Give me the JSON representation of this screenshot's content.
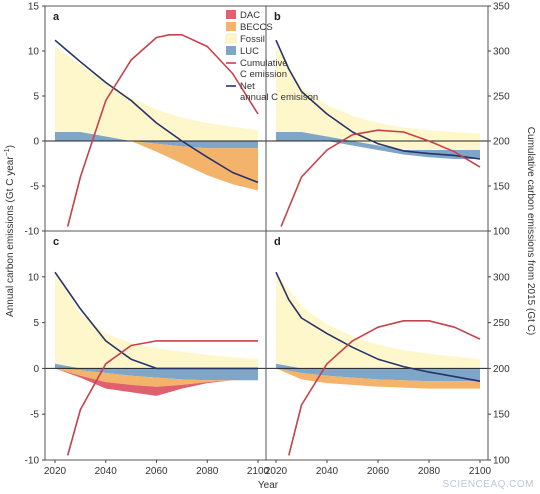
{
  "figure": {
    "ylabel_left": "Annual carbon emissions (Gt C year",
    "ylabel_left_sup": "−1",
    "ylabel_left_end": ")",
    "ylabel_right": "Cumulative carbon emissions from 2015 (Gt C)",
    "xlabel": "Year",
    "x_ticks": [
      2020,
      2040,
      2060,
      2080,
      2100
    ],
    "y_left_ticks": [
      -10,
      -5,
      0,
      5,
      10,
      15
    ],
    "y_right_ticks": [
      100,
      150,
      200,
      250,
      300,
      350
    ],
    "colors": {
      "dac": "#e06070",
      "beccs": "#f4b36a",
      "fossil": "#fff7cc",
      "luc": "#7fa6c6",
      "cumulative": "#c8404a",
      "net": "#27336b",
      "frame": "#555555"
    }
  },
  "legend": {
    "items": [
      {
        "key": "dac",
        "label": "DAC"
      },
      {
        "key": "beccs",
        "label": "BECCS"
      },
      {
        "key": "fossil",
        "label": "Fossil"
      },
      {
        "key": "luc",
        "label": "LUC"
      },
      {
        "key": "cumulative",
        "label": "Cumulative C emission"
      },
      {
        "key": "net",
        "label": "Net annual C emisison"
      }
    ]
  },
  "chart_data": [
    {
      "type": "area",
      "panel": "a",
      "x": [
        2020,
        2030,
        2040,
        2050,
        2060,
        2070,
        2080,
        2090,
        2100
      ],
      "series": [
        {
          "name": "Fossil",
          "upper": [
            10.5,
            8.5,
            6.5,
            4.8,
            3.5,
            2.6,
            2.0,
            1.6,
            1.2
          ],
          "lower": [
            1.0,
            1.0,
            0.5,
            0.0,
            0.0,
            0.0,
            0.0,
            0.0,
            0.0
          ]
        },
        {
          "name": "LUC",
          "upper": [
            1.0,
            1.0,
            0.5,
            0.0,
            0.0,
            0.0,
            0.0,
            0.0,
            0.0
          ],
          "lower": [
            0,
            0,
            0,
            0,
            -0.3,
            -0.6,
            -0.8,
            -0.8,
            -0.8
          ]
        },
        {
          "name": "BECCS",
          "upper": [
            0,
            0,
            0,
            0,
            -0.3,
            -0.6,
            -0.8,
            -0.8,
            -0.8
          ],
          "lower": [
            0,
            0,
            0,
            0,
            -1.2,
            -2.5,
            -3.8,
            -4.8,
            -5.5
          ]
        },
        {
          "name": "DAC",
          "upper": [
            0,
            0,
            0,
            0,
            0,
            0,
            0,
            0,
            0
          ],
          "lower": [
            0,
            0,
            0,
            0,
            0,
            0,
            0,
            0,
            0
          ]
        }
      ],
      "net": {
        "x": [
          2020,
          2025,
          2030,
          2040,
          2050,
          2060,
          2070,
          2080,
          2090,
          2100
        ],
        "y": [
          11.2,
          10.0,
          8.8,
          6.5,
          4.5,
          2.0,
          0.0,
          -1.8,
          -3.5,
          -4.6
        ]
      },
      "cumulative": {
        "x": [
          2025,
          2030,
          2040,
          2050,
          2060,
          2065,
          2070,
          2080,
          2090,
          2100
        ],
        "y": [
          105,
          160,
          245,
          290,
          315,
          318,
          318,
          305,
          275,
          230
        ]
      }
    },
    {
      "type": "area",
      "panel": "b",
      "x": [
        2020,
        2030,
        2040,
        2050,
        2060,
        2070,
        2080,
        2090,
        2100
      ],
      "series": [
        {
          "name": "Fossil",
          "upper": [
            10.5,
            6.0,
            4.0,
            2.8,
            2.0,
            1.5,
            1.2,
            1.0,
            0.8
          ],
          "lower": [
            1.0,
            1.0,
            0.5,
            0.0,
            -0.5,
            -1.0,
            -1.0,
            -1.0,
            -1.0
          ]
        },
        {
          "name": "LUC",
          "upper": [
            1.0,
            1.0,
            0.5,
            0.0,
            -0.5,
            -1.0,
            -1.0,
            -1.0,
            -1.0
          ],
          "lower": [
            0,
            0,
            0,
            -0.5,
            -1.0,
            -1.5,
            -1.8,
            -2.0,
            -2.0
          ]
        },
        {
          "name": "BECCS",
          "upper": [
            0,
            0,
            0,
            0,
            0,
            0,
            0,
            0,
            0
          ],
          "lower": [
            0,
            0,
            0,
            0,
            0,
            0,
            0,
            0,
            0
          ]
        },
        {
          "name": "DAC",
          "upper": [
            0,
            0,
            0,
            0,
            0,
            0,
            0,
            0,
            0
          ],
          "lower": [
            0,
            0,
            0,
            0,
            0,
            0,
            0,
            0,
            0
          ]
        }
      ],
      "net": {
        "x": [
          2020,
          2025,
          2030,
          2040,
          2050,
          2060,
          2070,
          2080,
          2090,
          2100
        ],
        "y": [
          11.2,
          8.0,
          5.5,
          3.0,
          1.0,
          -0.3,
          -1.1,
          -1.4,
          -1.6,
          -2.0
        ]
      },
      "cumulative": {
        "x": [
          2022,
          2030,
          2040,
          2050,
          2060,
          2070,
          2080,
          2090,
          2100
        ],
        "y": [
          105,
          160,
          190,
          207,
          212,
          210,
          200,
          188,
          171
        ]
      }
    },
    {
      "type": "area",
      "panel": "c",
      "x": [
        2020,
        2030,
        2040,
        2050,
        2060,
        2070,
        2080,
        2090,
        2100
      ],
      "series": [
        {
          "name": "Fossil",
          "upper": [
            10.5,
            6.0,
            3.8,
            2.8,
            2.2,
            1.8,
            1.5,
            1.2,
            1.0
          ],
          "lower": [
            0.5,
            0.0,
            0.0,
            0.0,
            0.0,
            0.0,
            0.0,
            0.0,
            0.0
          ]
        },
        {
          "name": "LUC",
          "upper": [
            0.5,
            0.0,
            0.0,
            0.0,
            0.0,
            0.0,
            0.0,
            0.0,
            0.0
          ],
          "lower": [
            0,
            -0.2,
            -0.5,
            -0.8,
            -1.0,
            -1.2,
            -1.3,
            -1.3,
            -1.3
          ]
        },
        {
          "name": "BECCS",
          "upper": [
            0,
            -0.2,
            -0.5,
            -0.8,
            -1.0,
            -1.2,
            -1.3,
            -1.3,
            -1.3
          ],
          "lower": [
            0,
            -0.8,
            -1.5,
            -1.8,
            -2.0,
            -1.8,
            -1.5,
            -1.3,
            -1.3
          ]
        },
        {
          "name": "DAC",
          "upper": [
            0,
            -0.8,
            -1.5,
            -1.8,
            -2.0,
            -1.8,
            -1.5,
            -1.3,
            -1.3
          ],
          "lower": [
            0,
            -1.0,
            -2.2,
            -2.6,
            -3.0,
            -2.2,
            -1.6,
            -1.3,
            -1.3
          ]
        }
      ],
      "net": {
        "x": [
          2020,
          2025,
          2030,
          2040,
          2050,
          2060,
          2070,
          2080,
          2090,
          2100
        ],
        "y": [
          10.5,
          8.5,
          6.5,
          3.0,
          1.0,
          0.0,
          0.0,
          0.0,
          0.0,
          0.0
        ]
      },
      "cumulative": {
        "x": [
          2025,
          2030,
          2040,
          2050,
          2060,
          2070,
          2080,
          2090,
          2100
        ],
        "y": [
          105,
          155,
          205,
          225,
          230,
          230,
          230,
          230,
          230
        ]
      }
    },
    {
      "type": "area",
      "panel": "d",
      "x": [
        2020,
        2030,
        2040,
        2050,
        2060,
        2070,
        2080,
        2090,
        2100
      ],
      "series": [
        {
          "name": "Fossil",
          "upper": [
            10.5,
            6.8,
            4.8,
            3.5,
            2.6,
            2.0,
            1.6,
            1.3,
            1.0
          ],
          "lower": [
            0.5,
            0.0,
            0.0,
            0.0,
            0.0,
            0.0,
            0.0,
            0.0,
            0.0
          ]
        },
        {
          "name": "LUC",
          "upper": [
            0.5,
            0.0,
            0.0,
            0.0,
            0.0,
            0.0,
            0.0,
            0.0,
            0.0
          ],
          "lower": [
            0,
            -0.5,
            -0.8,
            -1.0,
            -1.2,
            -1.3,
            -1.4,
            -1.4,
            -1.4
          ]
        },
        {
          "name": "BECCS",
          "upper": [
            0,
            -0.5,
            -0.8,
            -1.0,
            -1.2,
            -1.3,
            -1.4,
            -1.4,
            -1.4
          ],
          "lower": [
            0,
            -1.2,
            -1.6,
            -1.8,
            -2.0,
            -2.1,
            -2.2,
            -2.2,
            -2.2
          ]
        },
        {
          "name": "DAC",
          "upper": [
            0,
            0,
            0,
            0,
            0,
            0,
            0,
            0,
            0
          ],
          "lower": [
            0,
            0,
            0,
            0,
            0,
            0,
            0,
            0,
            0
          ]
        }
      ],
      "net": {
        "x": [
          2020,
          2025,
          2030,
          2040,
          2050,
          2060,
          2070,
          2080,
          2090,
          2100
        ],
        "y": [
          10.5,
          7.5,
          5.5,
          3.8,
          2.3,
          1.0,
          0.2,
          -0.4,
          -0.9,
          -1.4
        ]
      },
      "cumulative": {
        "x": [
          2025,
          2030,
          2040,
          2050,
          2060,
          2070,
          2080,
          2090,
          2100
        ],
        "y": [
          105,
          160,
          205,
          230,
          245,
          252,
          252,
          245,
          232
        ]
      }
    }
  ],
  "watermark": "SCIENCEAQ.COM"
}
